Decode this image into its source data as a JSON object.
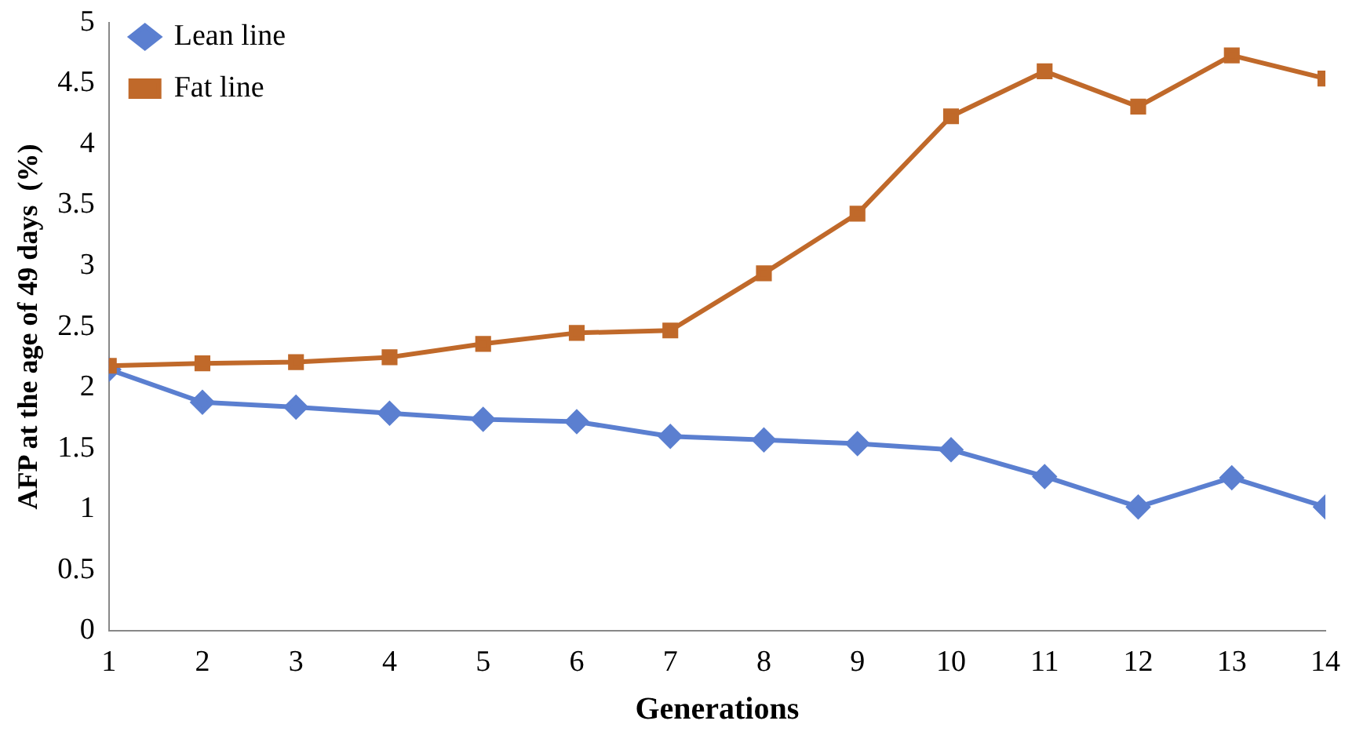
{
  "chart_data": {
    "type": "line",
    "xlabel": "Generations",
    "ylabel": "AFP at the age of 49 days  (%)",
    "x": [
      1,
      2,
      3,
      4,
      5,
      6,
      7,
      8,
      9,
      10,
      11,
      12,
      13,
      14
    ],
    "xlim": [
      1,
      14
    ],
    "xticks": [
      1,
      2,
      3,
      4,
      5,
      6,
      7,
      8,
      9,
      10,
      11,
      12,
      13,
      14
    ],
    "series": [
      {
        "name": "Lean line",
        "color": "#5b7fd0",
        "marker": "diamond",
        "values": [
          2.15,
          1.88,
          1.84,
          1.79,
          1.74,
          1.72,
          1.6,
          1.57,
          1.54,
          1.49,
          1.27,
          1.02,
          1.26,
          1.02
        ]
      },
      {
        "name": "Fat line",
        "color": "#c0692a",
        "marker": "square",
        "values": [
          2.18,
          2.2,
          2.21,
          2.25,
          2.36,
          2.45,
          2.47,
          2.94,
          3.43,
          4.23,
          4.6,
          4.31,
          4.73,
          4.54
        ]
      }
    ],
    "ylim": [
      0,
      5
    ],
    "yticks": [
      0,
      0.5,
      1,
      1.5,
      2,
      2.5,
      3,
      3.5,
      4,
      4.5,
      5
    ],
    "grid": false,
    "legend": "top left"
  }
}
